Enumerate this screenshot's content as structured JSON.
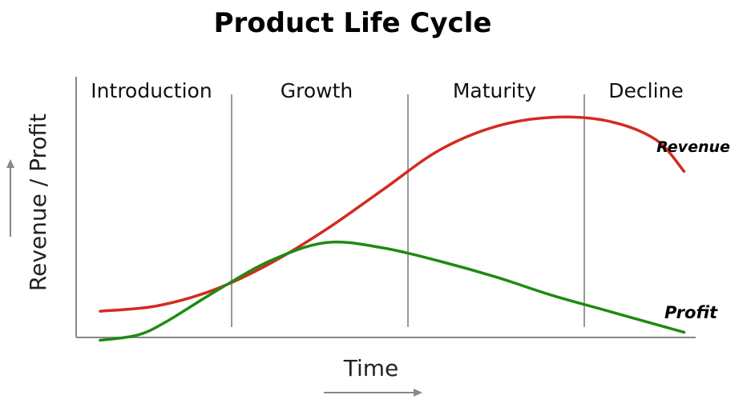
{
  "title": "Product Life Cycle",
  "stages": [
    "Introduction",
    "Growth",
    "Maturity",
    "Decline"
  ],
  "axes": {
    "x_label": "Time",
    "y_label": "Revenue / Profit"
  },
  "series": [
    {
      "name": "Revenue",
      "color": "#d42a1f",
      "points": [
        [
          0,
          6
        ],
        [
          3,
          8
        ],
        [
          6,
          14
        ],
        [
          9,
          24
        ],
        [
          12,
          37
        ],
        [
          15,
          52
        ],
        [
          18,
          67
        ],
        [
          21,
          76
        ],
        [
          24,
          79.5
        ],
        [
          27,
          78
        ],
        [
          29.5,
          71
        ],
        [
          31,
          59
        ]
      ]
    },
    {
      "name": "Profit",
      "color": "#1e8a12",
      "points": [
        [
          0,
          -5
        ],
        [
          2,
          -3
        ],
        [
          3.5,
          2
        ],
        [
          6,
          13
        ],
        [
          9,
          25
        ],
        [
          12,
          32
        ],
        [
          15,
          30
        ],
        [
          18,
          25
        ],
        [
          21,
          19
        ],
        [
          24,
          12
        ],
        [
          27,
          6
        ],
        [
          31,
          -2
        ]
      ]
    }
  ],
  "colors": {
    "axis": "#888888",
    "divider": "#999999",
    "arrow": "#888888"
  }
}
